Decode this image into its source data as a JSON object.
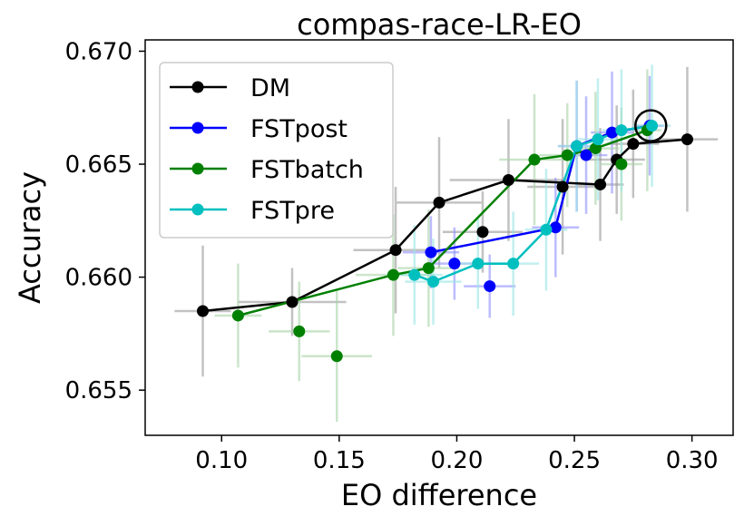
{
  "chart_data": {
    "type": "scatter",
    "title": "compas-race-LR-EO",
    "xlabel": "EO difference",
    "ylabel": "Accuracy",
    "xlim": [
      0.0675,
      0.3175
    ],
    "ylim": [
      0.653,
      0.6705
    ],
    "xticks": [
      0.1,
      0.15,
      0.2,
      0.25,
      0.3
    ],
    "xtick_labels": [
      "0.10",
      "0.15",
      "0.20",
      "0.25",
      "0.30"
    ],
    "yticks": [
      0.655,
      0.66,
      0.665,
      0.67
    ],
    "ytick_labels": [
      "0.655",
      "0.660",
      "0.665",
      "0.670"
    ],
    "legend_position": "top-left",
    "highlight_point": {
      "x": 0.2825,
      "y": 0.6667
    },
    "series": [
      {
        "name": "DM",
        "color": "#000000",
        "errorbar_color": "#999999",
        "points": [
          {
            "x": 0.092,
            "y": 0.6585,
            "xerr": 0.012,
            "yerr": 0.0029
          },
          {
            "x": 0.13,
            "y": 0.6589,
            "xerr": 0.023,
            "yerr": 0.0015
          },
          {
            "x": 0.174,
            "y": 0.6612,
            "xerr": 0.018,
            "yerr": 0.0028
          },
          {
            "x": 0.1925,
            "y": 0.6633,
            "xerr": 0.018,
            "yerr": 0.0029
          },
          {
            "x": 0.211,
            "y": 0.662,
            "xerr": 0.017,
            "yerr": 0.0018
          },
          {
            "x": 0.222,
            "y": 0.6643,
            "xerr": 0.025,
            "yerr": 0.0027
          },
          {
            "x": 0.245,
            "y": 0.664,
            "xerr": 0.015,
            "yerr": 0.003
          },
          {
            "x": 0.261,
            "y": 0.6641,
            "xerr": 0.01,
            "yerr": 0.0025
          },
          {
            "x": 0.268,
            "y": 0.6652,
            "xerr": 0.012,
            "yerr": 0.0024
          },
          {
            "x": 0.275,
            "y": 0.6659,
            "xerr": 0.011,
            "yerr": 0.0024
          },
          {
            "x": 0.298,
            "y": 0.6661,
            "xerr": 0.013,
            "yerr": 0.0032
          }
        ],
        "line_order": [
          0,
          1,
          2,
          3,
          5,
          7,
          8,
          9,
          10
        ]
      },
      {
        "name": "FSTpost",
        "color": "#0000ff",
        "errorbar_color": "#8f8fff",
        "points": [
          {
            "x": 0.189,
            "y": 0.6611,
            "xerr": 0.012,
            "yerr": 0.0016
          },
          {
            "x": 0.199,
            "y": 0.6606,
            "xerr": 0.011,
            "yerr": 0.0016
          },
          {
            "x": 0.214,
            "y": 0.6596,
            "xerr": 0.011,
            "yerr": 0.0014
          },
          {
            "x": 0.242,
            "y": 0.6622,
            "xerr": 0.01,
            "yerr": 0.0022
          },
          {
            "x": 0.251,
            "y": 0.6658,
            "xerr": 0.008,
            "yerr": 0.0029
          },
          {
            "x": 0.255,
            "y": 0.6654,
            "xerr": 0.009,
            "yerr": 0.0026
          },
          {
            "x": 0.266,
            "y": 0.6664,
            "xerr": 0.009,
            "yerr": 0.0027
          },
          {
            "x": 0.282,
            "y": 0.6667,
            "xerr": 0.006,
            "yerr": 0.0022
          }
        ],
        "line_order": [
          0,
          3,
          4,
          6,
          7
        ]
      },
      {
        "name": "FSTbatch",
        "color": "#008000",
        "errorbar_color": "#a8d4a8",
        "points": [
          {
            "x": 0.107,
            "y": 0.6583,
            "xerr": 0.01,
            "yerr": 0.0023
          },
          {
            "x": 0.133,
            "y": 0.6576,
            "xerr": 0.013,
            "yerr": 0.0022
          },
          {
            "x": 0.149,
            "y": 0.6565,
            "xerr": 0.015,
            "yerr": 0.0029
          },
          {
            "x": 0.173,
            "y": 0.6601,
            "xerr": 0.016,
            "yerr": 0.0027
          },
          {
            "x": 0.188,
            "y": 0.6604,
            "xerr": 0.013,
            "yerr": 0.0026
          },
          {
            "x": 0.233,
            "y": 0.6652,
            "xerr": 0.015,
            "yerr": 0.0029
          },
          {
            "x": 0.247,
            "y": 0.6654,
            "xerr": 0.012,
            "yerr": 0.0023
          },
          {
            "x": 0.259,
            "y": 0.6657,
            "xerr": 0.01,
            "yerr": 0.0025
          },
          {
            "x": 0.27,
            "y": 0.665,
            "xerr": 0.009,
            "yerr": 0.0025
          },
          {
            "x": 0.281,
            "y": 0.6665,
            "xerr": 0.006,
            "yerr": 0.0027
          }
        ],
        "line_order": [
          0,
          3,
          4,
          5,
          6,
          7,
          9
        ]
      },
      {
        "name": "FSTpre",
        "color": "#00bfbf",
        "errorbar_color": "#99e5e5",
        "points": [
          {
            "x": 0.182,
            "y": 0.6601,
            "xerr": 0.012,
            "yerr": 0.0022
          },
          {
            "x": 0.19,
            "y": 0.6598,
            "xerr": 0.012,
            "yerr": 0.0019
          },
          {
            "x": 0.209,
            "y": 0.6606,
            "xerr": 0.012,
            "yerr": 0.002
          },
          {
            "x": 0.224,
            "y": 0.6606,
            "xerr": 0.011,
            "yerr": 0.0023
          },
          {
            "x": 0.238,
            "y": 0.6621,
            "xerr": 0.009,
            "yerr": 0.0027
          },
          {
            "x": 0.251,
            "y": 0.6658,
            "xerr": 0.008,
            "yerr": 0.0029
          },
          {
            "x": 0.26,
            "y": 0.6661,
            "xerr": 0.009,
            "yerr": 0.0027
          },
          {
            "x": 0.27,
            "y": 0.6665,
            "xerr": 0.008,
            "yerr": 0.0027
          },
          {
            "x": 0.283,
            "y": 0.6667,
            "xerr": 0.008,
            "yerr": 0.0027
          }
        ],
        "line_order": [
          0,
          1,
          2,
          3,
          4,
          5,
          6,
          7,
          8
        ]
      }
    ]
  }
}
